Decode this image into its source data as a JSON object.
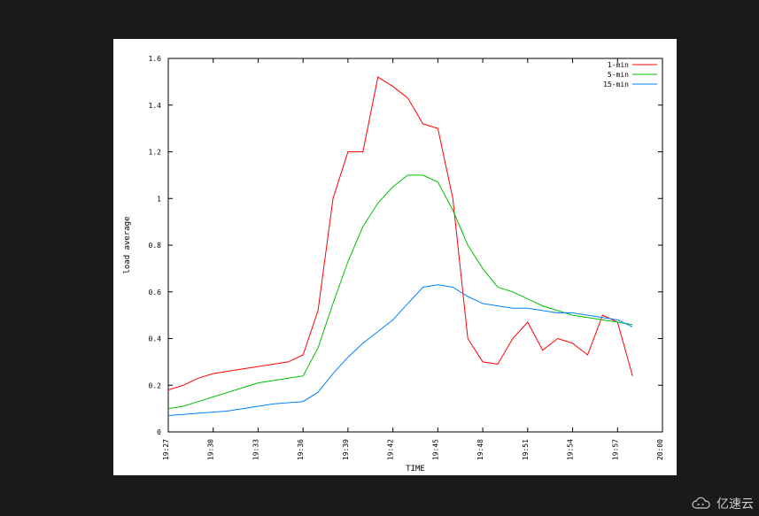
{
  "chart": {
    "type": "line",
    "xlabel": "TIME",
    "ylabel": "load average",
    "label_fontsize": 9,
    "tick_fontsize": 8,
    "background_color": "#ffffff",
    "axis_color": "#000000",
    "ylim": [
      0,
      1.6
    ],
    "yticks": [
      0,
      0.2,
      0.4,
      0.6,
      0.8,
      1,
      1.2,
      1.4,
      1.6
    ],
    "xticks": [
      "19:27",
      "19:30",
      "19:33",
      "19:36",
      "19:39",
      "19:42",
      "19:45",
      "19:48",
      "19:51",
      "19:54",
      "19:57",
      "20:00"
    ],
    "legend": {
      "position": "top-right",
      "items": [
        {
          "label": "1-min",
          "color": "#ff0000"
        },
        {
          "label": "5-min",
          "color": "#00c000"
        },
        {
          "label": "15-min",
          "color": "#0080ff"
        }
      ]
    },
    "series": [
      {
        "name": "1-min",
        "color": "#ff0000",
        "line_width": 1,
        "x": [
          "19:27",
          "19:28",
          "19:29",
          "19:30",
          "19:31",
          "19:32",
          "19:33",
          "19:34",
          "19:35",
          "19:36",
          "19:37",
          "19:38",
          "19:39",
          "19:40",
          "19:41",
          "19:42",
          "19:43",
          "19:44",
          "19:45",
          "19:46",
          "19:47",
          "19:48",
          "19:49",
          "19:50",
          "19:51",
          "19:52",
          "19:53",
          "19:54",
          "19:55",
          "19:56",
          "19:57",
          "19:58"
        ],
        "y": [
          0.18,
          0.2,
          0.23,
          0.25,
          0.26,
          0.27,
          0.28,
          0.29,
          0.3,
          0.33,
          0.52,
          1.0,
          1.2,
          1.2,
          1.52,
          1.48,
          1.43,
          1.32,
          1.3,
          1.0,
          0.4,
          0.3,
          0.29,
          0.4,
          0.47,
          0.35,
          0.4,
          0.38,
          0.33,
          0.5,
          0.47,
          0.24
        ]
      },
      {
        "name": "5-min",
        "color": "#00c000",
        "line_width": 1,
        "x": [
          "19:27",
          "19:28",
          "19:29",
          "19:30",
          "19:31",
          "19:32",
          "19:33",
          "19:34",
          "19:35",
          "19:36",
          "19:37",
          "19:38",
          "19:39",
          "19:40",
          "19:41",
          "19:42",
          "19:43",
          "19:44",
          "19:45",
          "19:46",
          "19:47",
          "19:48",
          "19:49",
          "19:50",
          "19:51",
          "19:52",
          "19:53",
          "19:54",
          "19:55",
          "19:56",
          "19:57",
          "19:58"
        ],
        "y": [
          0.1,
          0.11,
          0.13,
          0.15,
          0.17,
          0.19,
          0.21,
          0.22,
          0.23,
          0.24,
          0.36,
          0.55,
          0.73,
          0.88,
          0.98,
          1.05,
          1.1,
          1.1,
          1.07,
          0.95,
          0.8,
          0.7,
          0.62,
          0.6,
          0.57,
          0.54,
          0.52,
          0.5,
          0.49,
          0.48,
          0.47,
          0.46
        ]
      },
      {
        "name": "15-min",
        "color": "#0080ff",
        "line_width": 1,
        "x": [
          "19:27",
          "19:28",
          "19:29",
          "19:30",
          "19:31",
          "19:32",
          "19:33",
          "19:34",
          "19:35",
          "19:36",
          "19:37",
          "19:38",
          "19:39",
          "19:40",
          "19:41",
          "19:42",
          "19:43",
          "19:44",
          "19:45",
          "19:46",
          "19:47",
          "19:48",
          "19:49",
          "19:50",
          "19:51",
          "19:52",
          "19:53",
          "19:54",
          "19:55",
          "19:56",
          "19:57",
          "19:58"
        ],
        "y": [
          0.07,
          0.075,
          0.08,
          0.085,
          0.09,
          0.1,
          0.11,
          0.12,
          0.125,
          0.13,
          0.17,
          0.25,
          0.32,
          0.38,
          0.43,
          0.48,
          0.55,
          0.62,
          0.63,
          0.62,
          0.58,
          0.55,
          0.54,
          0.53,
          0.53,
          0.52,
          0.51,
          0.51,
          0.5,
          0.49,
          0.48,
          0.45
        ]
      }
    ]
  },
  "watermark": {
    "text": "亿速云"
  }
}
